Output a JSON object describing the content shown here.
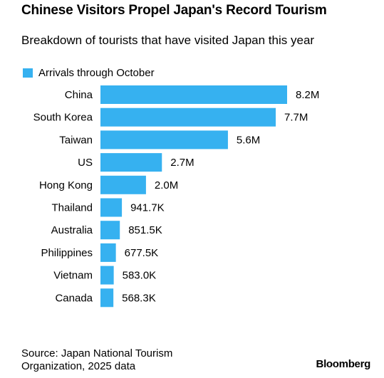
{
  "title": "Chinese Visitors Propel Japan's Record Tourism",
  "subtitle": "Breakdown of tourists that have visited Japan this year",
  "source": "Source: Japan National Tourism Organization, 2025 data",
  "brand": "Bloomberg",
  "colors": {
    "bar": "#36b1f0",
    "text": "#000000",
    "background": "#ffffff"
  },
  "chart_data": {
    "type": "bar",
    "orientation": "horizontal",
    "legend_position": "top-left",
    "grid": false,
    "categories": [
      "China",
      "South Korea",
      "Taiwan",
      "US",
      "Hong Kong",
      "Thailand",
      "Australia",
      "Philippines",
      "Vietnam",
      "Canada"
    ],
    "series": [
      {
        "name": "Arrivals through October",
        "values": [
          8200000,
          7700000,
          5600000,
          2700000,
          2000000,
          941700,
          851500,
          677500,
          583000,
          568300
        ],
        "labels": [
          "8.2M",
          "7.7M",
          "5.6M",
          "2.7M",
          "2.0M",
          "941.7K",
          "851.5K",
          "677.5K",
          "583.0K",
          "568.3K"
        ]
      }
    ],
    "xlim": [
      0,
      8200000
    ]
  }
}
